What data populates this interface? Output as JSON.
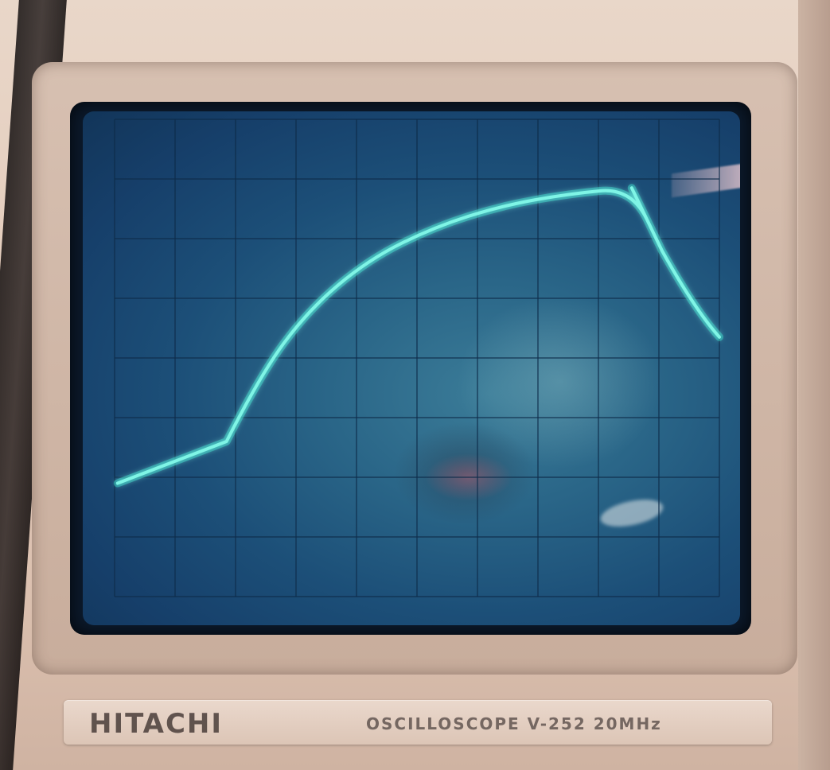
{
  "device": {
    "brand": "HITACHI",
    "model_label": "OSCILLOSCOPE V-252 20MHz"
  },
  "colors": {
    "trace": "#7ff5e6",
    "trace_glow": "#33e0cc",
    "grid": "#0e2c4a",
    "bezel": "#e3cbbb",
    "screen": "#1c4f78"
  },
  "graticule": {
    "divisions_x": 10,
    "divisions_y": 8
  },
  "waveform": {
    "description_points": [
      [
        0.05,
        6.1
      ],
      [
        1.85,
        5.4
      ],
      [
        2.4,
        4.3
      ],
      [
        3.2,
        3.2
      ],
      [
        4.2,
        2.35
      ],
      [
        5.3,
        1.8
      ],
      [
        6.4,
        1.45
      ],
      [
        7.5,
        1.25
      ],
      [
        8.55,
        1.15
      ],
      [
        9.05,
        2.2
      ],
      [
        9.6,
        3.2
      ],
      [
        10.0,
        3.65
      ]
    ]
  }
}
